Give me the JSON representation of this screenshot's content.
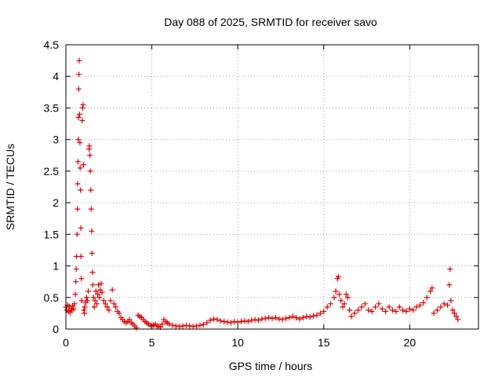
{
  "chart_data": {
    "type": "scatter",
    "title": "Day 088 of 2025, SRMTID for receiver savo",
    "xlabel": "GPS time / hours",
    "ylabel": "SRMTID / TECUs",
    "xlim": [
      0,
      24
    ],
    "ylim": [
      0,
      4.5
    ],
    "x_ticks": [
      0,
      5,
      10,
      15,
      20
    ],
    "x_tick_labels": [
      "0",
      "5",
      "10",
      "15",
      "20"
    ],
    "y_ticks": [
      0,
      0.5,
      1,
      1.5,
      2,
      2.5,
      3,
      3.5,
      4,
      4.5
    ],
    "y_tick_labels": [
      "0",
      "0.5",
      "1",
      "1.5",
      "2",
      "2.5",
      "3",
      "3.5",
      "4",
      "4.5"
    ],
    "grid": true,
    "marker": "plus",
    "color": "#e00000",
    "series": [
      {
        "name": "savo",
        "points": [
          [
            0.0,
            0.35
          ],
          [
            0.05,
            0.3
          ],
          [
            0.1,
            0.38
          ],
          [
            0.15,
            0.28
          ],
          [
            0.2,
            0.36
          ],
          [
            0.25,
            0.26
          ],
          [
            0.3,
            0.33
          ],
          [
            0.35,
            0.3
          ],
          [
            0.4,
            0.37
          ],
          [
            0.45,
            0.32
          ],
          [
            0.5,
            0.4
          ],
          [
            0.55,
            0.55
          ],
          [
            0.58,
            0.75
          ],
          [
            0.6,
            0.95
          ],
          [
            0.62,
            1.15
          ],
          [
            0.65,
            1.5
          ],
          [
            0.67,
            1.9
          ],
          [
            0.68,
            2.3
          ],
          [
            0.7,
            2.65
          ],
          [
            0.72,
            3.0
          ],
          [
            0.73,
            3.35
          ],
          [
            0.75,
            3.8
          ],
          [
            0.76,
            4.03
          ],
          [
            0.78,
            4.25
          ],
          [
            0.8,
            3.4
          ],
          [
            0.82,
            2.95
          ],
          [
            0.83,
            2.55
          ],
          [
            0.85,
            2.2
          ],
          [
            0.87,
            1.6
          ],
          [
            0.88,
            1.15
          ],
          [
            0.9,
            0.8
          ],
          [
            0.92,
            0.45
          ],
          [
            0.95,
            3.3
          ],
          [
            0.97,
            3.5
          ],
          [
            1.0,
            3.55
          ],
          [
            1.02,
            2.6
          ],
          [
            1.05,
            0.3
          ],
          [
            1.08,
            0.25
          ],
          [
            1.1,
            0.35
          ],
          [
            1.15,
            0.42
          ],
          [
            1.2,
            0.5
          ],
          [
            1.25,
            0.45
          ],
          [
            1.3,
            0.6
          ],
          [
            1.35,
            2.85
          ],
          [
            1.37,
            2.9
          ],
          [
            1.4,
            2.75
          ],
          [
            1.42,
            2.5
          ],
          [
            1.45,
            2.2
          ],
          [
            1.47,
            1.9
          ],
          [
            1.5,
            1.55
          ],
          [
            1.52,
            1.2
          ],
          [
            1.55,
            0.9
          ],
          [
            1.57,
            0.7
          ],
          [
            1.6,
            0.5
          ],
          [
            1.65,
            0.35
          ],
          [
            1.7,
            0.45
          ],
          [
            1.75,
            0.6
          ],
          [
            1.8,
            0.4
          ],
          [
            1.85,
            0.55
          ],
          [
            1.9,
            0.7
          ],
          [
            1.95,
            0.5
          ],
          [
            2.0,
            0.62
          ],
          [
            2.05,
            0.72
          ],
          [
            2.1,
            0.58
          ],
          [
            2.2,
            0.45
          ],
          [
            2.3,
            0.4
          ],
          [
            2.4,
            0.35
          ],
          [
            2.5,
            0.3
          ],
          [
            2.6,
            0.45
          ],
          [
            2.7,
            0.62
          ],
          [
            2.8,
            0.4
          ],
          [
            2.9,
            0.35
          ],
          [
            3.0,
            0.28
          ],
          [
            3.1,
            0.25
          ],
          [
            3.2,
            0.18
          ],
          [
            3.3,
            0.15
          ],
          [
            3.4,
            0.12
          ],
          [
            3.5,
            0.1
          ],
          [
            3.6,
            0.12
          ],
          [
            3.7,
            0.15
          ],
          [
            3.8,
            0.1
          ],
          [
            3.9,
            0.08
          ],
          [
            4.0,
            0.05
          ],
          [
            4.1,
            0.02
          ],
          [
            4.2,
            0.22
          ],
          [
            4.3,
            0.2
          ],
          [
            4.4,
            0.18
          ],
          [
            4.5,
            0.15
          ],
          [
            4.6,
            0.12
          ],
          [
            4.7,
            0.1
          ],
          [
            4.8,
            0.08
          ],
          [
            4.9,
            0.06
          ],
          [
            5.0,
            0.05
          ],
          [
            5.1,
            0.06
          ],
          [
            5.2,
            0.08
          ],
          [
            5.3,
            0.05
          ],
          [
            5.4,
            0.04
          ],
          [
            5.5,
            0.03
          ],
          [
            5.6,
            0.08
          ],
          [
            5.7,
            0.15
          ],
          [
            5.8,
            0.12
          ],
          [
            5.9,
            0.1
          ],
          [
            6.0,
            0.08
          ],
          [
            6.2,
            0.06
          ],
          [
            6.4,
            0.05
          ],
          [
            6.6,
            0.04
          ],
          [
            6.8,
            0.05
          ],
          [
            7.0,
            0.06
          ],
          [
            7.2,
            0.05
          ],
          [
            7.4,
            0.04
          ],
          [
            7.6,
            0.05
          ],
          [
            7.8,
            0.06
          ],
          [
            8.0,
            0.07
          ],
          [
            8.2,
            0.1
          ],
          [
            8.4,
            0.14
          ],
          [
            8.6,
            0.16
          ],
          [
            8.8,
            0.15
          ],
          [
            9.0,
            0.13
          ],
          [
            9.2,
            0.12
          ],
          [
            9.4,
            0.11
          ],
          [
            9.6,
            0.1
          ],
          [
            9.8,
            0.12
          ],
          [
            10.0,
            0.11
          ],
          [
            10.2,
            0.12
          ],
          [
            10.4,
            0.13
          ],
          [
            10.6,
            0.12
          ],
          [
            10.8,
            0.14
          ],
          [
            11.0,
            0.15
          ],
          [
            11.2,
            0.14
          ],
          [
            11.4,
            0.16
          ],
          [
            11.6,
            0.17
          ],
          [
            11.8,
            0.18
          ],
          [
            12.0,
            0.17
          ],
          [
            12.2,
            0.18
          ],
          [
            12.4,
            0.16
          ],
          [
            12.6,
            0.15
          ],
          [
            12.8,
            0.17
          ],
          [
            13.0,
            0.18
          ],
          [
            13.2,
            0.2
          ],
          [
            13.4,
            0.18
          ],
          [
            13.6,
            0.16
          ],
          [
            13.8,
            0.18
          ],
          [
            14.0,
            0.2
          ],
          [
            14.2,
            0.19
          ],
          [
            14.4,
            0.21
          ],
          [
            14.6,
            0.22
          ],
          [
            14.8,
            0.25
          ],
          [
            15.0,
            0.28
          ],
          [
            15.2,
            0.35
          ],
          [
            15.4,
            0.4
          ],
          [
            15.6,
            0.5
          ],
          [
            15.7,
            0.6
          ],
          [
            15.8,
            0.8
          ],
          [
            15.85,
            0.83
          ],
          [
            15.9,
            0.55
          ],
          [
            16.0,
            0.45
          ],
          [
            16.1,
            0.35
          ],
          [
            16.2,
            0.4
          ],
          [
            16.3,
            0.55
          ],
          [
            16.4,
            0.5
          ],
          [
            16.5,
            0.3
          ],
          [
            16.6,
            0.2
          ],
          [
            16.8,
            0.25
          ],
          [
            17.0,
            0.3
          ],
          [
            17.2,
            0.35
          ],
          [
            17.4,
            0.4
          ],
          [
            17.6,
            0.3
          ],
          [
            17.8,
            0.28
          ],
          [
            18.0,
            0.35
          ],
          [
            18.2,
            0.4
          ],
          [
            18.4,
            0.32
          ],
          [
            18.6,
            0.28
          ],
          [
            18.8,
            0.35
          ],
          [
            19.0,
            0.3
          ],
          [
            19.2,
            0.28
          ],
          [
            19.4,
            0.35
          ],
          [
            19.6,
            0.3
          ],
          [
            19.8,
            0.28
          ],
          [
            20.0,
            0.32
          ],
          [
            20.2,
            0.3
          ],
          [
            20.4,
            0.35
          ],
          [
            20.6,
            0.38
          ],
          [
            20.8,
            0.42
          ],
          [
            21.0,
            0.5
          ],
          [
            21.2,
            0.6
          ],
          [
            21.3,
            0.65
          ],
          [
            21.4,
            0.25
          ],
          [
            21.6,
            0.3
          ],
          [
            21.8,
            0.35
          ],
          [
            22.0,
            0.4
          ],
          [
            22.2,
            0.38
          ],
          [
            22.3,
            0.7
          ],
          [
            22.35,
            0.95
          ],
          [
            22.4,
            0.45
          ],
          [
            22.5,
            0.3
          ],
          [
            22.6,
            0.25
          ],
          [
            22.7,
            0.2
          ],
          [
            22.8,
            0.15
          ]
        ]
      }
    ]
  }
}
